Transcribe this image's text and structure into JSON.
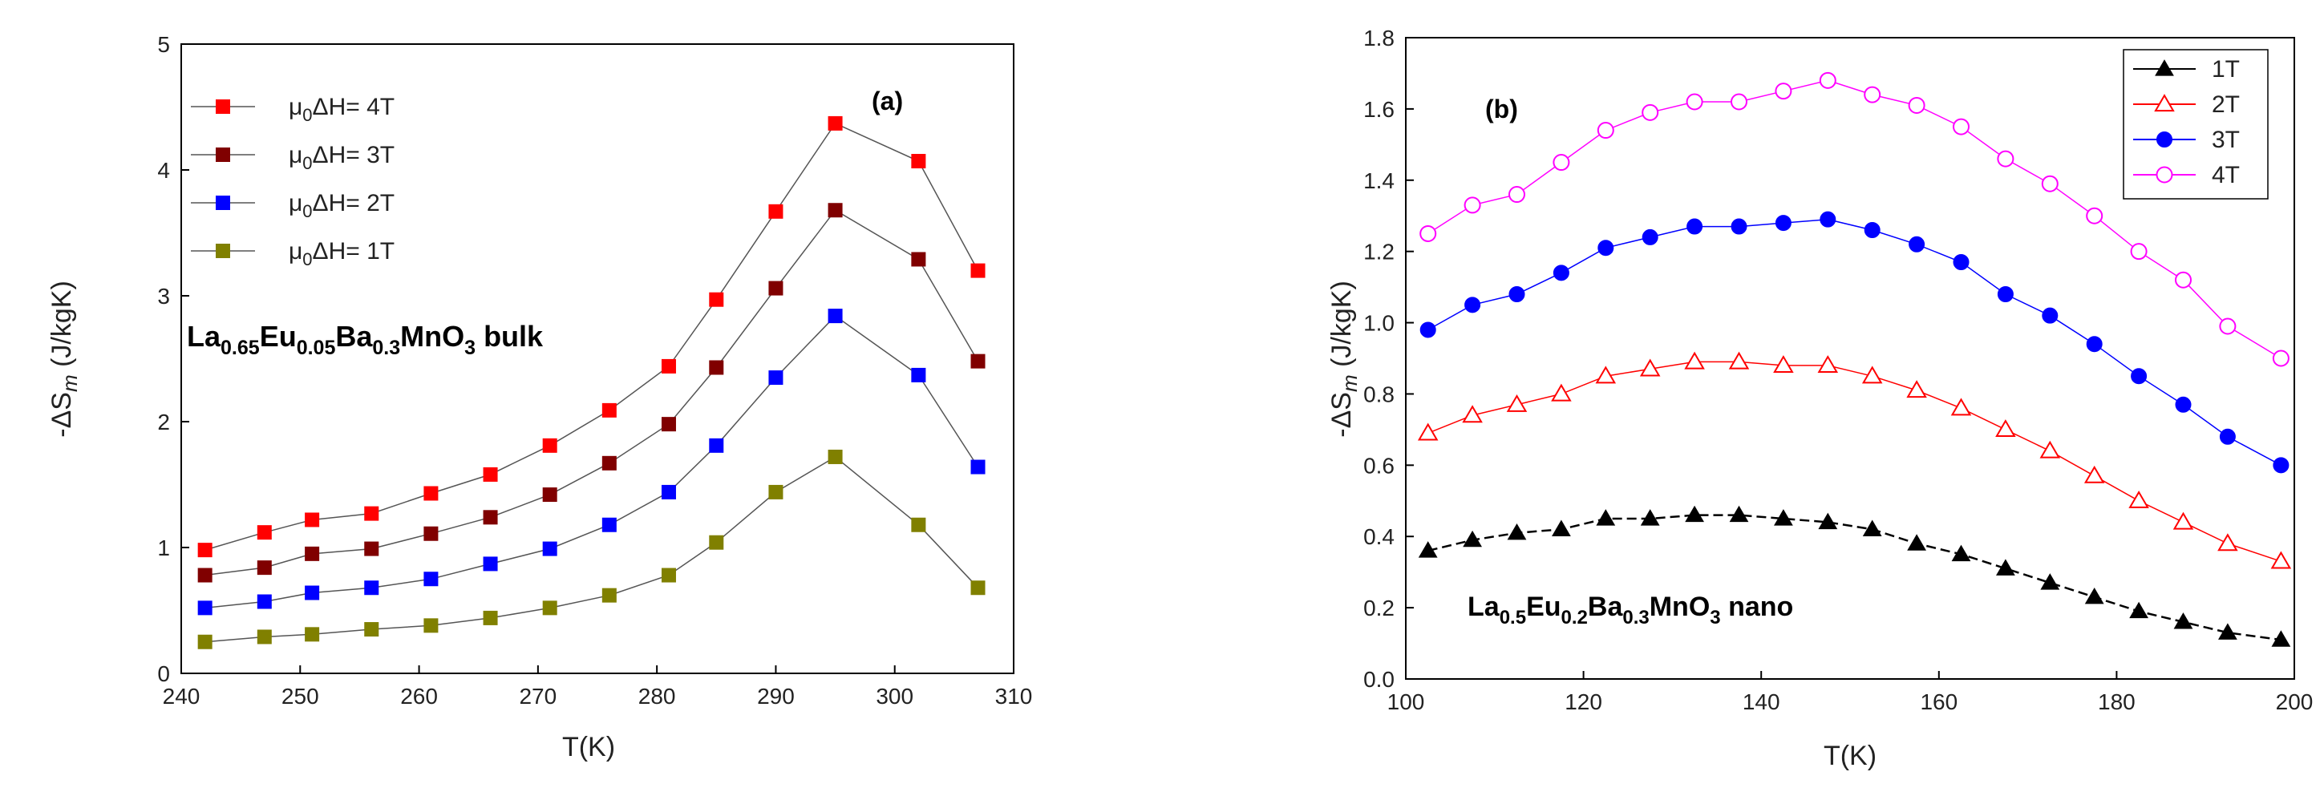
{
  "chart_data": [
    {
      "type": "line",
      "panel_label": "(a)",
      "xlabel": "T(K)",
      "ylabel": "-ΔS_m (J/kgK)",
      "xlim": [
        240,
        310
      ],
      "ylim": [
        0,
        5
      ],
      "xticks": [
        240,
        250,
        260,
        270,
        280,
        290,
        300,
        310
      ],
      "yticks": [
        0,
        1,
        2,
        3,
        4,
        5
      ],
      "legend_position": "top-left",
      "annotation": "La0.65Eu0.05Ba0.3MnO3 bulk",
      "x": [
        242,
        247,
        251,
        256,
        261,
        266,
        271,
        276,
        281,
        285,
        290,
        295,
        302,
        307
      ],
      "series": [
        {
          "name": "μ0ΔH= 4T",
          "color": "#ff0000",
          "marker": "square-filled",
          "values": [
            0.98,
            1.12,
            1.22,
            1.27,
            1.43,
            1.58,
            1.81,
            2.09,
            2.44,
            2.97,
            3.67,
            4.37,
            4.07,
            3.2
          ]
        },
        {
          "name": "μ0ΔH= 3T",
          "color": "#800000",
          "marker": "square-filled",
          "values": [
            0.78,
            0.84,
            0.95,
            0.99,
            1.11,
            1.24,
            1.42,
            1.67,
            1.98,
            2.43,
            3.06,
            3.68,
            3.29,
            2.48
          ]
        },
        {
          "name": "μ0ΔH= 2T",
          "color": "#0000ff",
          "marker": "square-filled",
          "values": [
            0.52,
            0.57,
            0.64,
            0.68,
            0.75,
            0.87,
            0.99,
            1.18,
            1.44,
            1.81,
            2.35,
            2.84,
            2.37,
            1.64
          ]
        },
        {
          "name": "μ0ΔH= 1T",
          "color": "#808000",
          "marker": "square-filled",
          "values": [
            0.25,
            0.29,
            0.31,
            0.35,
            0.38,
            0.44,
            0.52,
            0.62,
            0.78,
            1.04,
            1.44,
            1.72,
            1.18,
            0.68
          ]
        }
      ]
    },
    {
      "type": "line",
      "panel_label": "(b)",
      "xlabel": "T(K)",
      "ylabel": "-ΔS_m (J/kgK)",
      "xlim": [
        100,
        200
      ],
      "ylim": [
        0,
        1.8
      ],
      "xticks": [
        100,
        120,
        140,
        160,
        180,
        200
      ],
      "yticks": [
        "0.0",
        "0.2",
        "0.4",
        "0.6",
        "0.8",
        "1.0",
        "1.2",
        "1.4",
        "1.6",
        "1.8"
      ],
      "legend_position": "top-right",
      "annotation": "La0.5Eu0.2Ba0.3MnO3 nano",
      "x": [
        102.5,
        107.5,
        112.5,
        117.5,
        122.5,
        127.5,
        132.5,
        137.5,
        142.5,
        147.5,
        152.5,
        157.5,
        162.5,
        167.5,
        172.5,
        177.5,
        182.5,
        187.5,
        192.5,
        198.5
      ],
      "series": [
        {
          "name": "1T",
          "color": "#000000",
          "marker": "triangle-filled",
          "values": [
            0.36,
            0.39,
            0.41,
            0.42,
            0.45,
            0.45,
            0.46,
            0.46,
            0.45,
            0.44,
            0.42,
            0.38,
            0.35,
            0.31,
            0.27,
            0.23,
            0.19,
            0.16,
            0.13,
            0.11
          ]
        },
        {
          "name": "2T",
          "color": "#ff0000",
          "marker": "triangle-open",
          "values": [
            0.69,
            0.74,
            0.77,
            0.8,
            0.85,
            0.87,
            0.89,
            0.89,
            0.88,
            0.88,
            0.85,
            0.81,
            0.76,
            0.7,
            0.64,
            0.57,
            0.5,
            0.44,
            0.38,
            0.33
          ]
        },
        {
          "name": "3T",
          "color": "#0000ff",
          "marker": "circle-filled",
          "values": [
            0.98,
            1.05,
            1.08,
            1.14,
            1.21,
            1.24,
            1.27,
            1.27,
            1.28,
            1.29,
            1.26,
            1.22,
            1.17,
            1.08,
            1.02,
            0.94,
            0.85,
            0.77,
            0.68,
            0.6
          ]
        },
        {
          "name": "4T",
          "color": "#ff00ff",
          "marker": "circle-open",
          "values": [
            1.25,
            1.33,
            1.36,
            1.45,
            1.54,
            1.59,
            1.62,
            1.62,
            1.65,
            1.68,
            1.64,
            1.61,
            1.55,
            1.46,
            1.39,
            1.3,
            1.2,
            1.12,
            0.99,
            0.9
          ]
        }
      ]
    }
  ]
}
